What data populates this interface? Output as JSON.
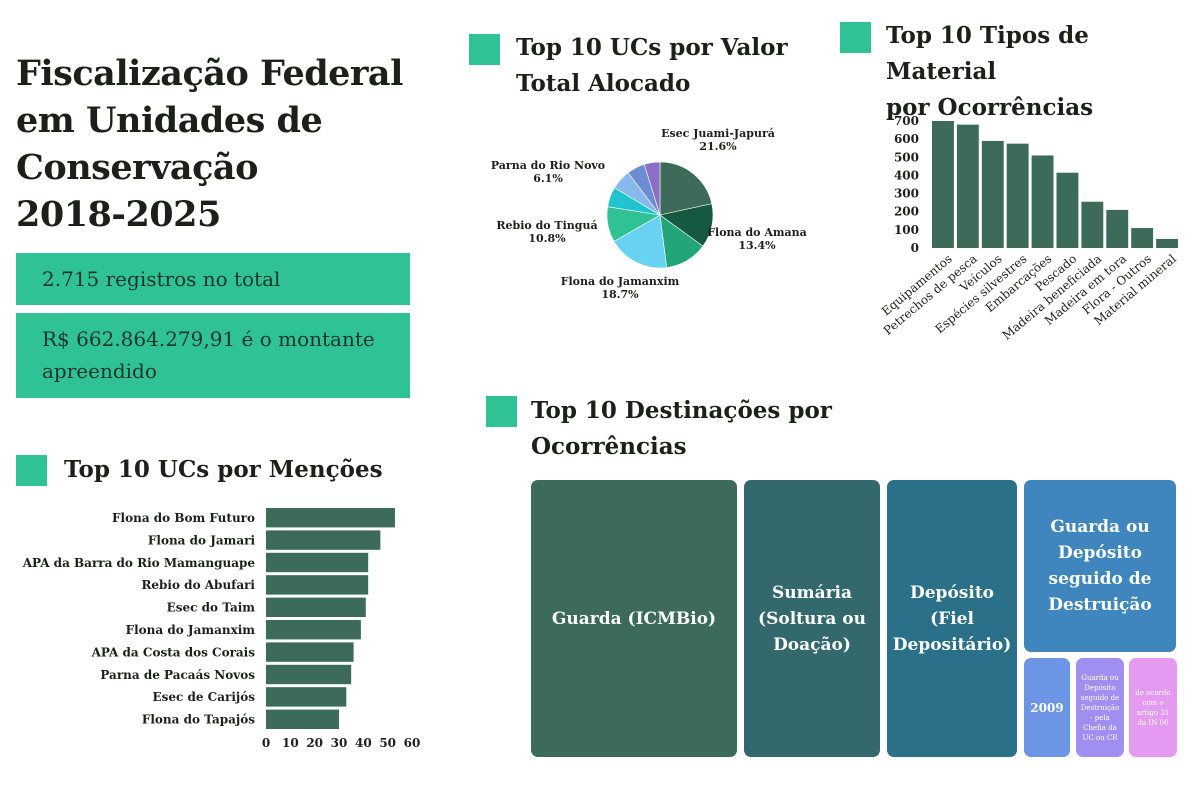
{
  "header": {
    "title_lines": [
      "Fiscalização Federal",
      "em Unidades de",
      "Conservação",
      "2018-2025"
    ]
  },
  "stats": {
    "records": "2.715 registros no total",
    "amount": "R$ 662.864.279,91 é o montante apreendido"
  },
  "colors": {
    "accent": "#2ec295",
    "bar": "#3d6b5a",
    "text": "#1b2118"
  },
  "sections": {
    "pie_title_lines": [
      "Top 10 UCs por Valor",
      "Total Alocado"
    ],
    "material_title_lines": [
      "Top 10 Tipos de Material",
      "por Ocorrências"
    ],
    "mentions_title": "Top 10 UCs por Menções",
    "destinations_title_lines": [
      "Top 10 Destinações por",
      "Ocorrências"
    ]
  },
  "chart_data": [
    {
      "id": "pie",
      "type": "pie",
      "title": "Top 10 UCs por Valor Total Alocado",
      "slices": [
        {
          "label": "Esec Juami-Japurá",
          "value": 21.6,
          "show_label": true,
          "color": "#3d6b5a"
        },
        {
          "label": "Flona do Amana",
          "value": 13.4,
          "show_label": true,
          "color": "#155a40"
        },
        {
          "label": "",
          "value": 13.0,
          "show_label": false,
          "color": "#22a578"
        },
        {
          "label": "Flona do Jamanxim",
          "value": 18.7,
          "show_label": true,
          "color": "#67d3f0"
        },
        {
          "label": "Rebio do Tinguá",
          "value": 10.8,
          "show_label": true,
          "color": "#2ec295"
        },
        {
          "label": "",
          "value": 6.1,
          "show_label": false,
          "color": "#1fc4d0"
        },
        {
          "label": "Parna do Rio Novo",
          "value": 6.1,
          "show_label": true,
          "color": "#86b9ee"
        },
        {
          "label": "",
          "value": 5.5,
          "show_label": false,
          "color": "#6d8dd3"
        },
        {
          "label": "",
          "value": 4.8,
          "show_label": false,
          "color": "#8c6fc4"
        }
      ]
    },
    {
      "id": "materials",
      "type": "bar",
      "title": "Top 10 Tipos de Material por Ocorrências",
      "categories": [
        "Equipamentos",
        "Petrechos de pesca",
        "Veículos",
        "Espécies silvestres",
        "Embarcações",
        "Pescado",
        "Madeira beneficiada",
        "Madeira em tora",
        "Flora - Outros",
        "Material mineral"
      ],
      "values": [
        700,
        680,
        590,
        575,
        510,
        415,
        255,
        210,
        110,
        50
      ],
      "yticks": [
        0,
        100,
        200,
        300,
        400,
        500,
        600,
        700
      ],
      "ylim": [
        0,
        700
      ],
      "xlabel": "",
      "ylabel": "",
      "grid": false
    },
    {
      "id": "mentions",
      "type": "bar",
      "orientation": "horizontal",
      "title": "Top 10 UCs por Menções",
      "categories": [
        "Flona do Bom Futuro",
        "Flona do Jamari",
        "APA da Barra do Rio Mamanguape",
        "Rebio do Abufari",
        "Esec do Taim",
        "Flona do Jamanxim",
        "APA da Costa dos Corais",
        "Parna de Pacaás Novos",
        "Esec de Carijós",
        "Flona do Tapajós"
      ],
      "values": [
        53,
        47,
        42,
        42,
        41,
        39,
        36,
        35,
        33,
        30
      ],
      "xticks": [
        0,
        10,
        20,
        30,
        40,
        50,
        60
      ],
      "xlim": [
        0,
        60
      ],
      "grid": false
    },
    {
      "id": "destinations",
      "type": "treemap",
      "title": "Top 10 Destinações por Ocorrências",
      "cells": [
        {
          "label": "Guarda (ICMBio)",
          "color": "#3d6b5a"
        },
        {
          "label": "Sumária (Soltura ou Doação)",
          "color": "#33686d"
        },
        {
          "label": "Depósito (Fiel Depositário)",
          "color": "#2a7088"
        },
        {
          "label": "Guarda ou Depósito seguido de Destruição",
          "color": "#3f86bf"
        },
        {
          "label": "2009",
          "color": "#6c95e6"
        },
        {
          "label": "Guarda ou Depósito seguido de Destruição - pela Chefia da UC ou CR",
          "color": "#a08ff0"
        },
        {
          "label": "de acordo com o artigo 31 da IN 06",
          "color": "#e49af0"
        }
      ]
    }
  ]
}
